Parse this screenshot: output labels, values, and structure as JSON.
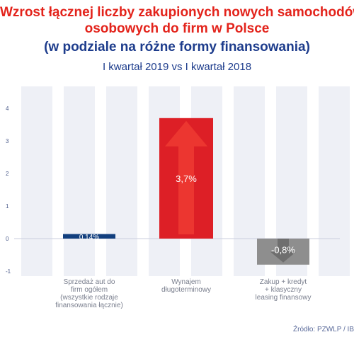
{
  "header": {
    "title_line1": "Wzrost łącznej liczby zakupionych nowych samochodów",
    "title_line2": "osobowych do firm w Polsce",
    "title_line3": "(w podziale na różne formy finansowania)",
    "subtitle": "I kwartał 2019 vs I kwartał 2018"
  },
  "source": "Źródło: PZWLP / IB",
  "colors": {
    "title_red": "#e3231b",
    "title_blue": "#1d3c8c",
    "bar_blue": "#123f7e",
    "bar_red": "#dd1f26",
    "bar_gray": "#8e8e8e",
    "stripe": "#eef0f6"
  },
  "chart_data": {
    "type": "bar",
    "categories": [
      [
        "Sprzedaż aut do",
        "firm ogółem",
        "(wszystkie rodzaje",
        "finansowania łącznie)"
      ],
      [
        "Wynajem",
        "długoterminowy"
      ],
      [
        "Zakup + kredyt",
        "+ klasyczny",
        "leasing finansowy"
      ]
    ],
    "values": [
      0.14,
      3.7,
      -0.8
    ],
    "value_labels": [
      "0,14%",
      "3,7%",
      "-0,8%"
    ],
    "ylim": [
      -1,
      4
    ],
    "yticks": [
      -1,
      0,
      1,
      2,
      3,
      4
    ],
    "grid": "vertical-stripes"
  }
}
